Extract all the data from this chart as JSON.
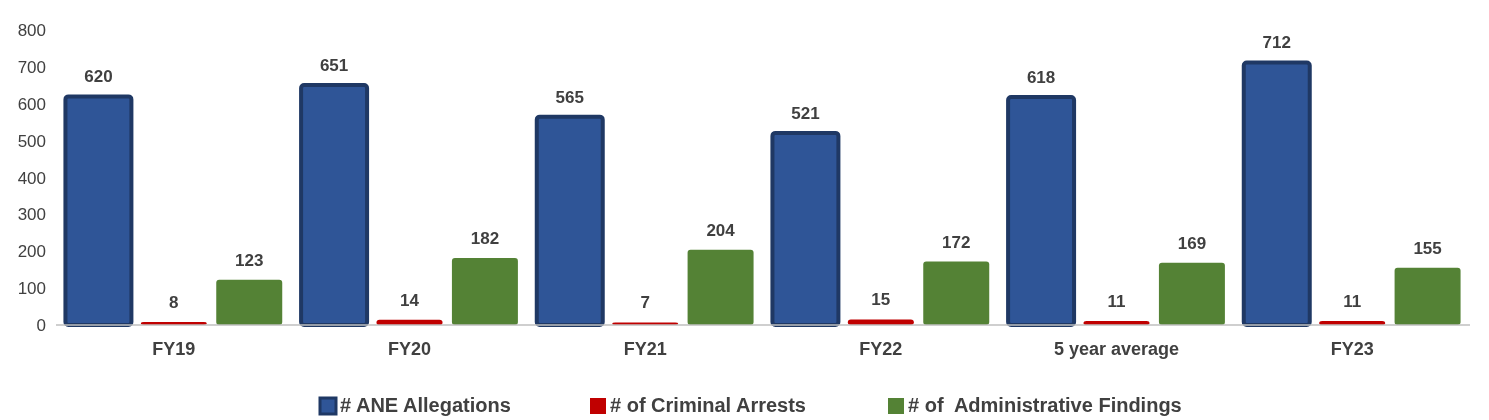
{
  "chart_data": {
    "type": "bar",
    "categories": [
      "FY19",
      "FY20",
      "FY21",
      "FY22",
      "5 year average",
      "FY23"
    ],
    "series": [
      {
        "name": "# ANE Allegations",
        "color": "#2f5597",
        "values": [
          620,
          651,
          565,
          521,
          618,
          712
        ]
      },
      {
        "name": "# of Criminal Arrests",
        "color": "#c00000",
        "values": [
          8,
          14,
          7,
          15,
          11,
          11
        ]
      },
      {
        "name": "# of  Administrative Findings",
        "color": "#548235",
        "values": [
          123,
          182,
          204,
          172,
          169,
          155
        ]
      }
    ],
    "ylim": [
      0,
      800
    ],
    "yticks": [
      0,
      100,
      200,
      300,
      400,
      500,
      600,
      700,
      800
    ],
    "grid": false,
    "legend": "bottom",
    "data_labels": true
  }
}
